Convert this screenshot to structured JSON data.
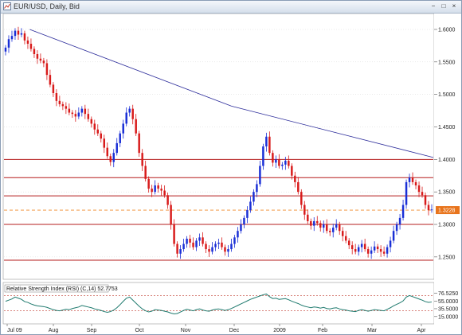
{
  "window": {
    "title": "EUR/USD, Daily, Bid",
    "buttons": [
      "−",
      "□",
      "×"
    ]
  },
  "colors": {
    "up": "#1a2fd6",
    "down": "#d81b1b",
    "trendline": "#2b2b9a",
    "hline": "#b51c1c",
    "current_line": "#f08a2a",
    "current_tag": "#e8741c",
    "rsi_line": "#1f7a6e",
    "rsi_level": "#c0392b",
    "grid": "#d6d6d6"
  },
  "chart_data": [
    {
      "type": "candlestick",
      "title": "EUR/USD, Daily, Bid",
      "ylim": [
        1.218,
        1.622
      ],
      "y_ticks": [
        "1.6000",
        "1.5500",
        "1.5000",
        "1.4500",
        "1.4000",
        "1.3500",
        "1.3000",
        "1.2500"
      ],
      "x_ticks": [
        "Jul 09",
        "Aug",
        "Sep",
        "Oct",
        "Nov",
        "Dec",
        "2009",
        "Feb",
        "Mar",
        "Apr"
      ],
      "current_price": "1.3228",
      "horizontal_lines": [
        1.4,
        1.372,
        1.344,
        1.3,
        1.245
      ],
      "current_level": 1.322,
      "trendlines": [
        {
          "from": [
            0.06,
            1.6
          ],
          "to": [
            0.53,
            1.482
          ]
        },
        {
          "from": [
            0.53,
            1.482
          ],
          "to": [
            1.0,
            1.403
          ]
        }
      ],
      "closes": [
        1.572,
        1.585,
        1.59,
        1.598,
        1.592,
        1.594,
        1.583,
        1.578,
        1.57,
        1.562,
        1.555,
        1.552,
        1.548,
        1.53,
        1.515,
        1.502,
        1.49,
        1.485,
        1.482,
        1.478,
        1.472,
        1.47,
        1.466,
        1.472,
        1.478,
        1.47,
        1.462,
        1.455,
        1.446,
        1.44,
        1.432,
        1.418,
        1.405,
        1.396,
        1.41,
        1.425,
        1.44,
        1.455,
        1.472,
        1.478,
        1.462,
        1.44,
        1.41,
        1.39,
        1.37,
        1.355,
        1.35,
        1.36,
        1.355,
        1.352,
        1.345,
        1.33,
        1.3,
        1.27,
        1.255,
        1.262,
        1.27,
        1.278,
        1.272,
        1.265,
        1.275,
        1.28,
        1.27,
        1.262,
        1.258,
        1.265,
        1.27,
        1.272,
        1.265,
        1.258,
        1.262,
        1.27,
        1.28,
        1.29,
        1.3,
        1.31,
        1.322,
        1.335,
        1.35,
        1.362,
        1.39,
        1.42,
        1.435,
        1.41,
        1.395,
        1.4,
        1.39,
        1.392,
        1.398,
        1.39,
        1.375,
        1.365,
        1.35,
        1.33,
        1.315,
        1.305,
        1.298,
        1.305,
        1.302,
        1.295,
        1.3,
        1.29,
        1.288,
        1.295,
        1.3,
        1.29,
        1.282,
        1.275,
        1.268,
        1.262,
        1.258,
        1.265,
        1.27,
        1.262,
        1.255,
        1.26,
        1.266,
        1.262,
        1.258,
        1.255,
        1.265,
        1.275,
        1.29,
        1.3,
        1.31,
        1.33,
        1.365,
        1.372,
        1.365,
        1.36,
        1.35,
        1.345,
        1.33,
        1.322,
        1.323
      ]
    },
    {
      "type": "line",
      "title": "Relative Strength Index (RSI) (C,14) 52.7753",
      "ylim": [
        0,
        100
      ],
      "y_ticks": [
        "76.5250",
        "55.0000",
        "35.5000",
        "15.0000"
      ],
      "levels": [
        70,
        30
      ],
      "values": [
        55,
        58,
        61,
        66,
        63,
        60,
        54,
        52,
        48,
        45,
        43,
        42,
        41,
        39,
        36,
        33,
        31,
        30,
        32,
        34,
        33,
        36,
        38,
        40,
        44,
        42,
        40,
        38,
        35,
        33,
        31,
        28,
        26,
        28,
        32,
        38,
        46,
        55,
        63,
        66,
        58,
        50,
        42,
        35,
        30,
        27,
        29,
        33,
        32,
        31,
        29,
        27,
        24,
        22,
        23,
        27,
        31,
        34,
        32,
        30,
        33,
        35,
        32,
        30,
        29,
        32,
        34,
        35,
        33,
        31,
        33,
        36,
        40,
        44,
        48,
        52,
        56,
        60,
        63,
        66,
        69,
        72,
        74,
        67,
        62,
        63,
        60,
        61,
        62,
        59,
        55,
        52,
        49,
        45,
        42,
        40,
        38,
        40,
        39,
        37,
        39,
        36,
        35,
        37,
        38,
        35,
        33,
        32,
        30,
        29,
        28,
        31,
        33,
        31,
        29,
        31,
        33,
        32,
        31,
        30,
        34,
        38,
        43,
        47,
        51,
        56,
        66,
        70,
        67,
        64,
        61,
        58,
        54,
        52,
        53
      ]
    }
  ]
}
